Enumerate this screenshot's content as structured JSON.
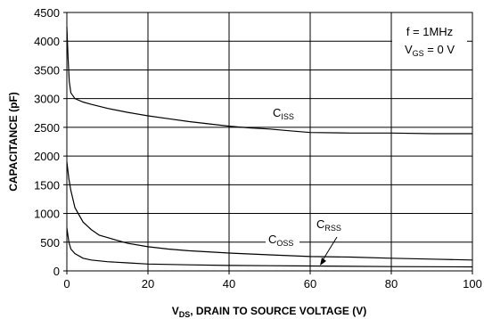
{
  "chart_data": {
    "type": "line",
    "xlabel": {
      "main": "V",
      "sub": "DS",
      "rest": ", DRAIN TO SOURCE VOLTAGE (V)"
    },
    "ylabel": "CAPACITANCE (pF)",
    "xlim": [
      0,
      100
    ],
    "ylim": [
      0,
      4500
    ],
    "xticks": [
      0,
      20,
      40,
      60,
      80,
      100
    ],
    "yticks": [
      0,
      500,
      1000,
      1500,
      2000,
      2500,
      3000,
      3500,
      4000,
      4500
    ],
    "grid": true,
    "conditions": [
      {
        "main": "f = 1MHz",
        "sub": "",
        "rest": ""
      },
      {
        "main": "V",
        "sub": "GS",
        "rest": " = 0 V"
      }
    ],
    "series": [
      {
        "name": "C",
        "name_sub": "ISS",
        "values": [
          [
            0,
            4250
          ],
          [
            0.3,
            3700
          ],
          [
            0.6,
            3300
          ],
          [
            1,
            3100
          ],
          [
            2,
            3000
          ],
          [
            4,
            2940
          ],
          [
            6,
            2900
          ],
          [
            10,
            2830
          ],
          [
            15,
            2760
          ],
          [
            20,
            2700
          ],
          [
            25,
            2650
          ],
          [
            30,
            2600
          ],
          [
            35,
            2560
          ],
          [
            40,
            2520
          ],
          [
            45,
            2490
          ],
          [
            50,
            2470
          ],
          [
            55,
            2440
          ],
          [
            60,
            2410
          ],
          [
            70,
            2400
          ],
          [
            80,
            2400
          ],
          [
            90,
            2390
          ],
          [
            100,
            2390
          ]
        ]
      },
      {
        "name": "C",
        "name_sub": "OSS",
        "values": [
          [
            0,
            1900
          ],
          [
            0.5,
            1600
          ],
          [
            1,
            1400
          ],
          [
            2,
            1100
          ],
          [
            4,
            850
          ],
          [
            6,
            720
          ],
          [
            8,
            620
          ],
          [
            10,
            580
          ],
          [
            15,
            480
          ],
          [
            20,
            420
          ],
          [
            25,
            380
          ],
          [
            30,
            350
          ],
          [
            40,
            310
          ],
          [
            50,
            280
          ],
          [
            60,
            250
          ],
          [
            70,
            240
          ],
          [
            80,
            220
          ],
          [
            90,
            205
          ],
          [
            100,
            190
          ]
        ]
      },
      {
        "name": "C",
        "name_sub": "RSS",
        "values": [
          [
            0,
            750
          ],
          [
            0.5,
            500
          ],
          [
            1,
            380
          ],
          [
            2,
            300
          ],
          [
            4,
            220
          ],
          [
            6,
            190
          ],
          [
            10,
            160
          ],
          [
            15,
            140
          ],
          [
            20,
            120
          ],
          [
            30,
            105
          ],
          [
            40,
            95
          ],
          [
            50,
            90
          ],
          [
            60,
            85
          ],
          [
            80,
            75
          ],
          [
            100,
            70
          ]
        ]
      }
    ]
  }
}
